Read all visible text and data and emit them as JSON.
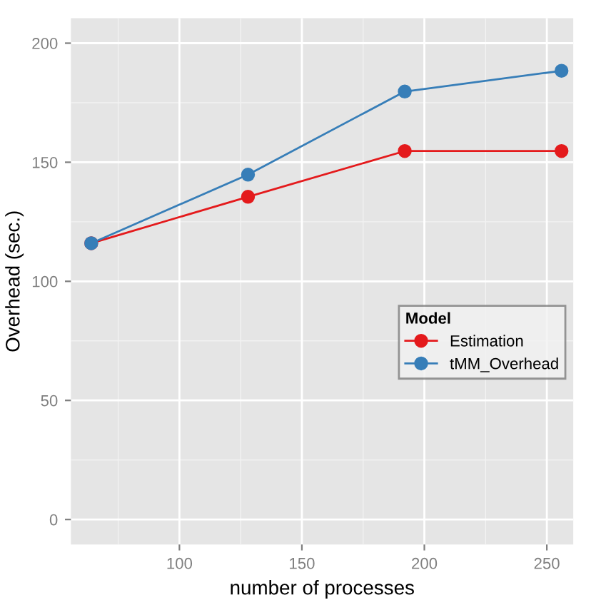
{
  "chart_data": {
    "type": "line",
    "xlabel": "number of processes",
    "ylabel": "Overhead (sec.)",
    "legend_title": "Model",
    "x": [
      64,
      128,
      192,
      256
    ],
    "series": [
      {
        "name": "Estimation",
        "color": "#e41a1c",
        "values": [
          116,
          135.5,
          154.7,
          154.7
        ]
      },
      {
        "name": "tMM_Overhead",
        "color": "#377eb8",
        "values": [
          116,
          144.8,
          179.7,
          188.4
        ]
      }
    ],
    "xlim": [
      55.7,
      260.8
    ],
    "ylim": [
      -10.5,
      210.5
    ],
    "xticks": [
      100,
      150,
      200,
      250
    ],
    "yticks": [
      0,
      50,
      100,
      150,
      200
    ],
    "grid": true,
    "legend": "bottom right",
    "marker": "circle",
    "line_style": "solid"
  }
}
